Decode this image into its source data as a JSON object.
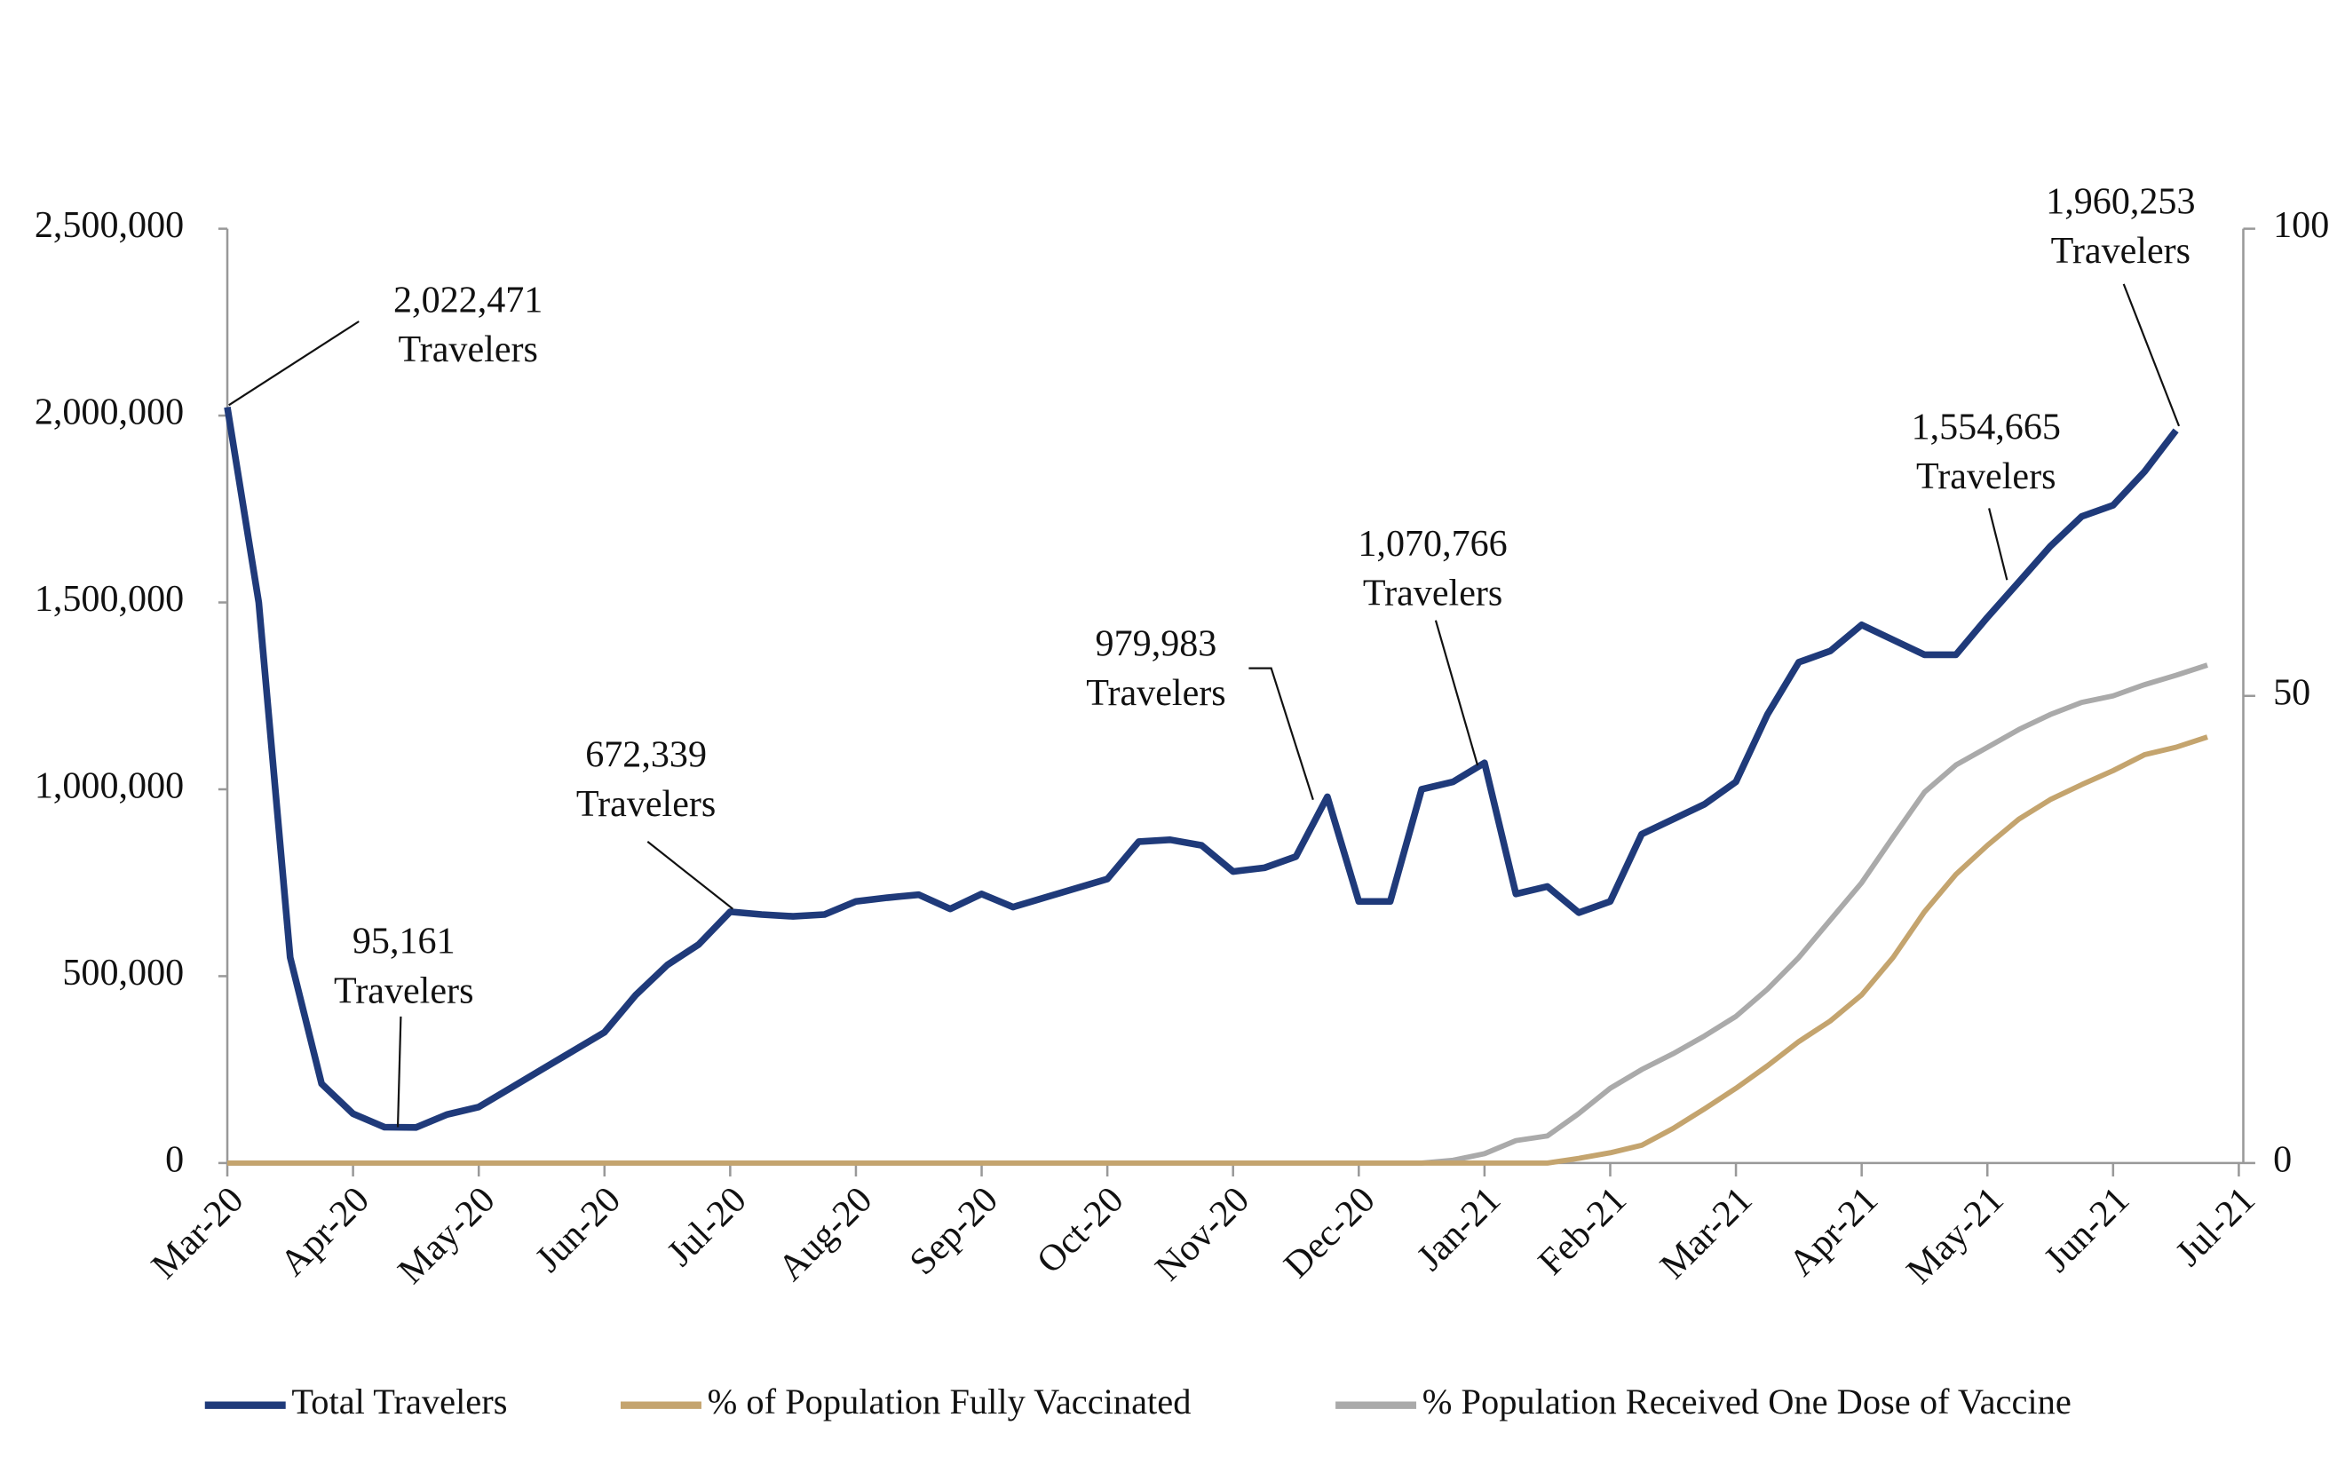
{
  "chart_data": {
    "type": "line",
    "categories": [
      "Mar-20",
      null,
      null,
      null,
      "Apr-20",
      null,
      null,
      null,
      "May-20",
      null,
      null,
      null,
      "Jun-20",
      null,
      null,
      null,
      "Jul-20",
      null,
      null,
      null,
      "Aug-20",
      null,
      null,
      null,
      "Sep-20",
      null,
      null,
      null,
      "Oct-20",
      null,
      null,
      null,
      "Nov-20",
      null,
      null,
      null,
      "Dec-20",
      null,
      null,
      null,
      "Jan-21",
      null,
      null,
      null,
      "Feb-21",
      null,
      null,
      null,
      "Mar-21",
      null,
      null,
      null,
      "Apr-21",
      null,
      null,
      null,
      "May-21",
      null,
      null,
      null,
      "Jun-21",
      null,
      null,
      null,
      "Jul-21"
    ],
    "series": [
      {
        "name": "Total Travelers",
        "color": "#1f3a7a",
        "values": [
          2022471,
          1500000,
          550000,
          212000,
          132000,
          96000,
          95161,
          130000,
          150000,
          200000,
          250000,
          300000,
          350000,
          450000,
          530000,
          585000,
          672339,
          665000,
          660000,
          665000,
          700000,
          710000,
          718000,
          680000,
          720000,
          685000,
          710000,
          735000,
          760000,
          860000,
          865000,
          850000,
          780000,
          790000,
          820000,
          979983,
          700000,
          700000,
          1000000,
          1020000,
          1070766,
          720000,
          740000,
          670000,
          700000,
          880000,
          920000,
          960000,
          1020000,
          1200000,
          1340000,
          1370000,
          1440000,
          1400000,
          1360000,
          1360000,
          1460000,
          1554665,
          1650000,
          1730000,
          1760000,
          1850000,
          1960253,
          null,
          null
        ]
      },
      {
        "name": "% of Population Fully Vaccinated",
        "color": "#c4a46e",
        "axis": "y2",
        "values": [
          0,
          0,
          0,
          0,
          0,
          0,
          0,
          0,
          0,
          0,
          0,
          0,
          0,
          0,
          0,
          0,
          0,
          0,
          0,
          0,
          0,
          0,
          0,
          0,
          0,
          0,
          0,
          0,
          0,
          0,
          0,
          0,
          0,
          0,
          0,
          0,
          0,
          0,
          0,
          0,
          0,
          0,
          0,
          0.5,
          1.1,
          1.9,
          3.7,
          5.8,
          8,
          10.4,
          13,
          15.2,
          18,
          22,
          26.9,
          30.9,
          34,
          36.8,
          38.9,
          40.5,
          42,
          43.7,
          44.5,
          45.6,
          null
        ]
      },
      {
        "name": "% Population Received One Dose of Vaccine",
        "color": "#aaaaaa",
        "axis": "y2",
        "values": [
          0,
          0,
          0,
          0,
          0,
          0,
          0,
          0,
          0,
          0,
          0,
          0,
          0,
          0,
          0,
          0,
          0,
          0,
          0,
          0,
          0,
          0,
          0,
          0,
          0,
          0,
          0,
          0,
          0,
          0,
          0,
          0,
          0,
          0,
          0,
          0,
          0,
          0,
          0,
          0.3,
          1,
          2.4,
          2.9,
          5.3,
          8,
          10,
          11.7,
          13.6,
          15.7,
          18.6,
          22,
          26,
          30,
          34.9,
          39.7,
          42.6,
          44.5,
          46.4,
          48,
          49.3,
          50,
          51.2,
          52.2,
          53.3,
          null
        ]
      }
    ],
    "ylim": [
      0,
      2500000
    ],
    "yticks": [
      0,
      {
        "value": 500000,
        "label": "500,000"
      },
      {
        "value": 1000000,
        "label": "1,000,000"
      },
      {
        "value": 1500000,
        "label": "1,500,000"
      },
      {
        "value": 2000000,
        "label": "2,000,000"
      },
      {
        "value": 2500000,
        "label": "2,500,000"
      }
    ],
    "y2lim": [
      0,
      100
    ],
    "y2ticks": [
      0,
      50,
      100
    ],
    "grid": false,
    "legend": "bottom",
    "annotations": [
      {
        "lines": [
          "2,022,471",
          "Travelers"
        ]
      },
      {
        "lines": [
          "95,161",
          "Travelers"
        ]
      },
      {
        "lines": [
          "672,339",
          "Travelers"
        ]
      },
      {
        "lines": [
          "979,983",
          "Travelers"
        ]
      },
      {
        "lines": [
          "1,070,766",
          "Travelers"
        ]
      },
      {
        "lines": [
          "1,554,665",
          "Travelers"
        ]
      },
      {
        "lines": [
          "1,960,253",
          "Travelers"
        ]
      }
    ]
  }
}
